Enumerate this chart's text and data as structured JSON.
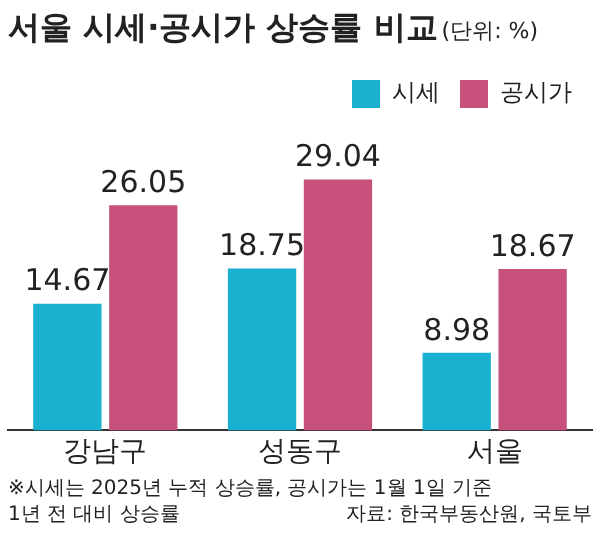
{
  "chart_data": {
    "type": "bar",
    "title": "서울 시세·공시가 상승률 비교",
    "subtitle": "(단위: %)",
    "categories": [
      "강남구",
      "성동구",
      "서울"
    ],
    "series": [
      {
        "name": "시세",
        "color": "#1ab0cf",
        "values": [
          14.67,
          18.75,
          8.98
        ]
      },
      {
        "name": "공시가",
        "color": "#c8507d",
        "values": [
          26.05,
          29.04,
          18.67
        ]
      }
    ],
    "data_labels": true,
    "legend": "top right",
    "grid": false,
    "annotations": [
      "※시세는 2025년 누적 상승률, 공시가는 1월 1일 기준",
      "1년 전 대비 상승률",
      "자료: 한국부동산원, 국토부"
    ]
  }
}
